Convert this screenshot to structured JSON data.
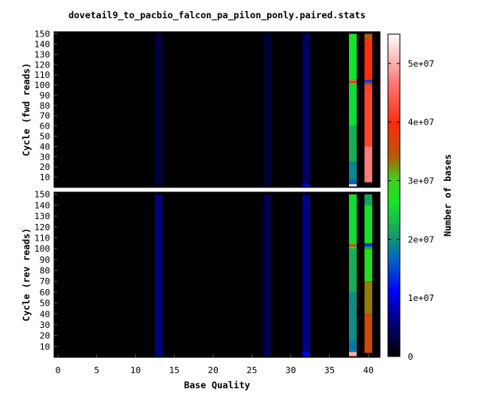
{
  "chart_data": {
    "type": "heatmap",
    "title": "dovetail9_to_pacbio_falcon_pa_pilon_ponly.paired.stats",
    "xlabel": "Base Quality",
    "xlim": [
      -0.5,
      41.5
    ],
    "x_ticks": [
      0,
      5,
      10,
      15,
      20,
      25,
      30,
      35,
      40
    ],
    "ylim": [
      0,
      152
    ],
    "y_ticks": [
      10,
      20,
      30,
      40,
      50,
      60,
      70,
      80,
      90,
      100,
      110,
      120,
      130,
      140,
      150
    ],
    "colorbar": {
      "label": "Number of bases",
      "range": [
        0,
        55000000
      ],
      "ticks": [
        0,
        10000000,
        20000000,
        30000000,
        40000000,
        50000000
      ],
      "tick_labels": [
        "0",
        "1e+07",
        "2e+07",
        "3e+07",
        "4e+07",
        "5e+07"
      ],
      "colormap": [
        [
          0.0,
          "#000000"
        ],
        [
          0.12,
          "#00008c"
        ],
        [
          0.2,
          "#0000ff"
        ],
        [
          0.3,
          "#0064c8"
        ],
        [
          0.38,
          "#14a064"
        ],
        [
          0.48,
          "#14e628"
        ],
        [
          0.55,
          "#3cd214"
        ],
        [
          0.62,
          "#b45a0a"
        ],
        [
          0.72,
          "#ff2a0a"
        ],
        [
          0.85,
          "#ff7878"
        ],
        [
          1.0,
          "#ffffff"
        ]
      ]
    },
    "panels": [
      {
        "ylabel": "Cycle (fwd reads)",
        "columns": [
          {
            "quality": 13,
            "segments": [
              {
                "from": 1,
                "to": 150,
                "value": 3000000
              }
            ]
          },
          {
            "quality": 27,
            "segments": [
              {
                "from": 1,
                "to": 150,
                "value": 2500000
              }
            ]
          },
          {
            "quality": 32,
            "segments": [
              {
                "from": 1,
                "to": 3,
                "value": 11000000
              },
              {
                "from": 3,
                "to": 150,
                "value": 4500000
              }
            ]
          },
          {
            "quality": 38,
            "segments": [
              {
                "from": 1,
                "to": 3,
                "value": 55000000
              },
              {
                "from": 3,
                "to": 8,
                "value": 17000000
              },
              {
                "from": 8,
                "to": 25,
                "value": 19000000
              },
              {
                "from": 25,
                "to": 60,
                "value": 22000000
              },
              {
                "from": 60,
                "to": 100,
                "value": 25500000
              },
              {
                "from": 100,
                "to": 102,
                "value": 29000000
              },
              {
                "from": 102,
                "to": 104,
                "value": 40000000
              },
              {
                "from": 104,
                "to": 105,
                "value": 46000000
              },
              {
                "from": 105,
                "to": 150,
                "value": 26500000
              }
            ]
          },
          {
            "quality": 40,
            "segments": [
              {
                "from": 5,
                "to": 40,
                "value": 47000000
              },
              {
                "from": 40,
                "to": 100,
                "value": 42000000
              },
              {
                "from": 100,
                "to": 102,
                "value": 36000000
              },
              {
                "from": 102,
                "to": 105,
                "value": 15000000
              },
              {
                "from": 105,
                "to": 145,
                "value": 40000000
              },
              {
                "from": 145,
                "to": 150,
                "value": 34000000
              }
            ]
          }
        ]
      },
      {
        "ylabel": "Cycle (rev reads)",
        "columns": [
          {
            "quality": 13,
            "segments": [
              {
                "from": 1,
                "to": 150,
                "value": 6000000
              }
            ]
          },
          {
            "quality": 27,
            "segments": [
              {
                "from": 1,
                "to": 150,
                "value": 3500000
              }
            ]
          },
          {
            "quality": 32,
            "segments": [
              {
                "from": 1,
                "to": 5,
                "value": 11000000
              },
              {
                "from": 5,
                "to": 150,
                "value": 6500000
              }
            ]
          },
          {
            "quality": 38,
            "segments": [
              {
                "from": 1,
                "to": 5,
                "value": 50000000
              },
              {
                "from": 5,
                "to": 15,
                "value": 18000000
              },
              {
                "from": 15,
                "to": 60,
                "value": 19500000
              },
              {
                "from": 60,
                "to": 100,
                "value": 22000000
              },
              {
                "from": 100,
                "to": 102,
                "value": 27000000
              },
              {
                "from": 102,
                "to": 104,
                "value": 41000000
              },
              {
                "from": 104,
                "to": 106,
                "value": 30000000
              },
              {
                "from": 106,
                "to": 150,
                "value": 25500000
              }
            ]
          },
          {
            "quality": 40,
            "segments": [
              {
                "from": 4,
                "to": 40,
                "value": 36000000
              },
              {
                "from": 40,
                "to": 70,
                "value": 33000000
              },
              {
                "from": 70,
                "to": 100,
                "value": 28000000
              },
              {
                "from": 100,
                "to": 102,
                "value": 21000000
              },
              {
                "from": 102,
                "to": 105,
                "value": 14000000
              },
              {
                "from": 105,
                "to": 110,
                "value": 27000000
              },
              {
                "from": 110,
                "to": 140,
                "value": 26000000
              },
              {
                "from": 140,
                "to": 150,
                "value": 21000000
              }
            ]
          }
        ]
      }
    ]
  }
}
